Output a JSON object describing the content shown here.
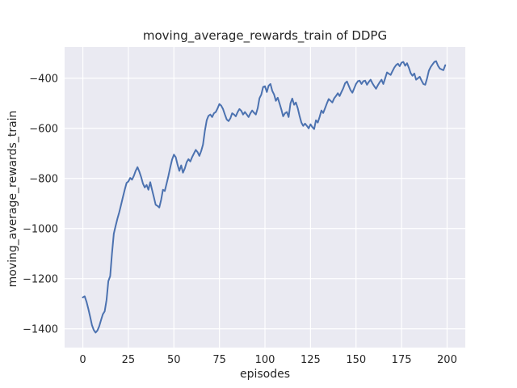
{
  "chart_data": {
    "type": "line",
    "title": "moving_average_rewards_train of DDPG",
    "xlabel": "episodes",
    "ylabel": "moving_average_rewards_train",
    "x_ticks": [
      0,
      25,
      50,
      75,
      100,
      125,
      150,
      175,
      200
    ],
    "y_ticks": [
      -400,
      -600,
      -800,
      -1000,
      -1200,
      -1400
    ],
    "xlim": [
      -10,
      210
    ],
    "ylim": [
      -1475,
      -275
    ],
    "grid": true,
    "legend": "none",
    "styles": {
      "figure_background": "#ffffff",
      "axes_background": "#eaeaf2",
      "grid_color": "#ffffff",
      "text_color": "#262626",
      "line_color": "#4c72b0"
    },
    "series": [
      {
        "name": "moving_average_rewards_train",
        "color": "#4c72b0",
        "x_start": 0,
        "x_step": 1,
        "n_points": 200,
        "y": [
          -1275,
          -1270,
          -1292,
          -1320,
          -1352,
          -1385,
          -1405,
          -1415,
          -1407,
          -1390,
          -1365,
          -1342,
          -1330,
          -1285,
          -1210,
          -1190,
          -1100,
          -1020,
          -990,
          -960,
          -935,
          -905,
          -875,
          -845,
          -818,
          -812,
          -798,
          -805,
          -790,
          -770,
          -755,
          -772,
          -794,
          -820,
          -836,
          -826,
          -845,
          -815,
          -845,
          -875,
          -905,
          -910,
          -916,
          -885,
          -845,
          -850,
          -820,
          -790,
          -755,
          -725,
          -705,
          -715,
          -745,
          -770,
          -748,
          -777,
          -760,
          -735,
          -723,
          -732,
          -715,
          -700,
          -686,
          -695,
          -710,
          -690,
          -665,
          -610,
          -568,
          -550,
          -545,
          -555,
          -540,
          -535,
          -520,
          -503,
          -510,
          -523,
          -545,
          -565,
          -571,
          -560,
          -540,
          -545,
          -552,
          -535,
          -523,
          -530,
          -545,
          -535,
          -545,
          -555,
          -540,
          -529,
          -538,
          -545,
          -520,
          -480,
          -465,
          -435,
          -432,
          -455,
          -430,
          -423,
          -450,
          -465,
          -490,
          -478,
          -500,
          -525,
          -552,
          -540,
          -535,
          -555,
          -500,
          -481,
          -506,
          -497,
          -520,
          -550,
          -577,
          -590,
          -581,
          -590,
          -600,
          -584,
          -595,
          -603,
          -568,
          -577,
          -555,
          -529,
          -539,
          -520,
          -500,
          -483,
          -490,
          -497,
          -480,
          -471,
          -460,
          -471,
          -455,
          -440,
          -420,
          -413,
          -430,
          -448,
          -458,
          -440,
          -423,
          -412,
          -410,
          -423,
          -412,
          -410,
          -426,
          -415,
          -406,
          -420,
          -432,
          -442,
          -428,
          -416,
          -406,
          -423,
          -400,
          -377,
          -382,
          -387,
          -372,
          -358,
          -348,
          -342,
          -352,
          -338,
          -335,
          -350,
          -340,
          -358,
          -380,
          -390,
          -381,
          -406,
          -400,
          -394,
          -410,
          -423,
          -426,
          -400,
          -370,
          -355,
          -345,
          -335,
          -332,
          -350,
          -361,
          -365,
          -368,
          -348
        ]
      }
    ]
  }
}
